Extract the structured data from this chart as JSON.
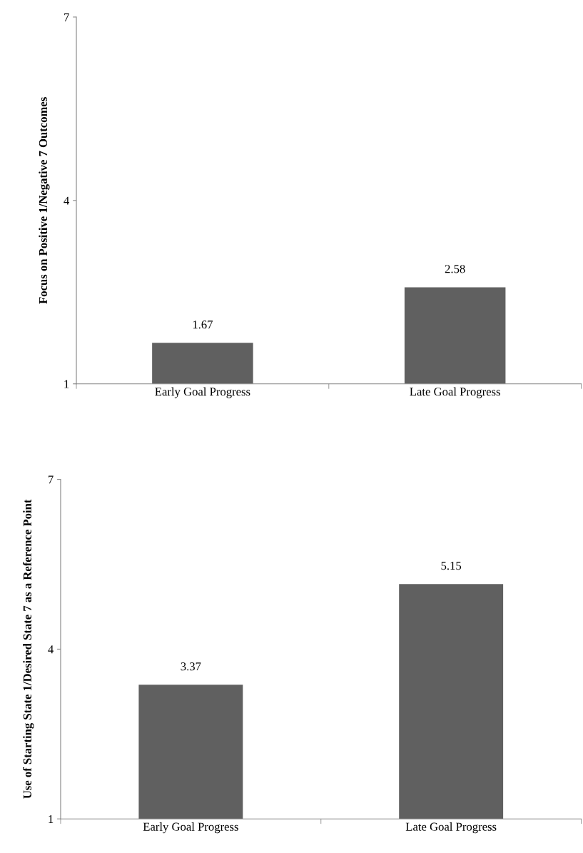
{
  "chart_data": [
    {
      "type": "bar",
      "ylabel": "Focus on Positive 1/Negative 7 Outcomes",
      "categories": [
        "Early Goal Progress",
        "Late Goal Progress"
      ],
      "values": [
        1.67,
        2.58
      ],
      "color": "#606060",
      "ylim": [
        1,
        7
      ],
      "yticks": [
        1,
        4,
        7
      ],
      "data_labels": true,
      "grid": false,
      "legend": false
    },
    {
      "type": "bar",
      "ylabel": "Use of Starting State 1/Desired State 7 as a Reference Point",
      "categories": [
        "Early Goal Progress",
        "Late Goal Progress"
      ],
      "values": [
        3.37,
        5.15
      ],
      "color": "#606060",
      "ylim": [
        1,
        7
      ],
      "yticks": [
        1,
        4,
        7
      ],
      "data_labels": true,
      "grid": false,
      "legend": false
    }
  ]
}
